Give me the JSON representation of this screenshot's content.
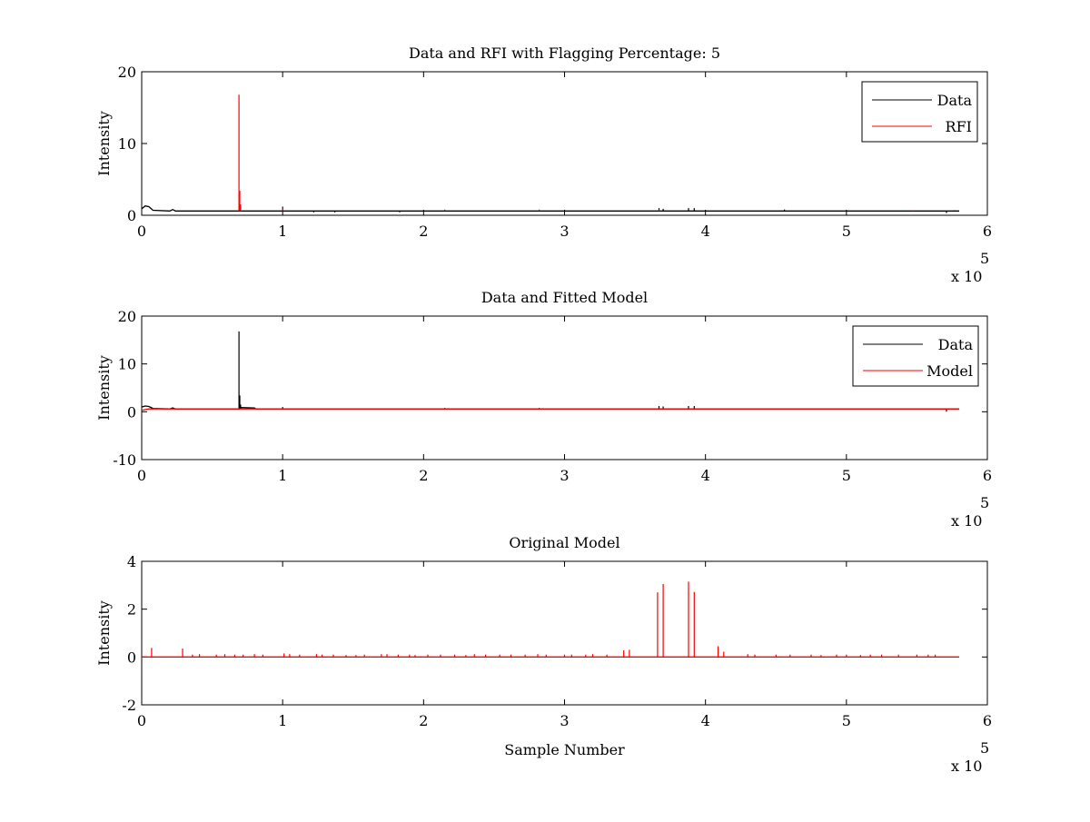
{
  "chart_data": [
    {
      "type": "line",
      "title": "Data and RFI with Flagging Percentage: 5",
      "xlabel": "",
      "ylabel": "Intensity",
      "xlim": [
        0,
        600000
      ],
      "ylim": [
        0,
        20
      ],
      "xticks": [
        0,
        1,
        2,
        3,
        4,
        5,
        6
      ],
      "yticks": [
        0,
        10,
        20
      ],
      "x_exponent": "x 10",
      "x_exponent_power": "5",
      "legend": {
        "position": "top-right",
        "entries": [
          "Data",
          "RFI"
        ]
      },
      "series": [
        {
          "name": "Data",
          "color": "#000000",
          "baseline": 0.6,
          "x_end": 580000,
          "shape": [
            [
              0,
              0.9
            ],
            [
              2500,
              1.3
            ],
            [
              5000,
              1.2
            ],
            [
              8000,
              0.7
            ],
            [
              20000,
              0.6
            ],
            [
              22000,
              0.8
            ],
            [
              24000,
              0.6
            ]
          ],
          "spikes": [
            [
              69000,
              1.5
            ],
            [
              100000,
              1.2
            ],
            [
              122000,
              0.4
            ],
            [
              137000,
              0.4
            ],
            [
              183000,
              0.4
            ],
            [
              367000,
              1.0
            ],
            [
              370000,
              0.9
            ],
            [
              388000,
              1.0
            ],
            [
              392000,
              1.0
            ],
            [
              456000,
              0.8
            ],
            [
              571000,
              0.3
            ],
            [
              577000,
              0.7
            ]
          ]
        },
        {
          "name": "RFI",
          "color": "#ff0000",
          "baseline": null,
          "x_end": 580000,
          "shape": [],
          "spikes": [
            [
              69000,
              16.8
            ],
            [
              69600,
              3.4
            ],
            [
              70200,
              1.5
            ],
            [
              100000,
              1.0
            ],
            [
              215000,
              0.8
            ],
            [
              282000,
              0.8
            ],
            [
              367000,
              0.8
            ],
            [
              396000,
              0.6
            ],
            [
              547000,
              0.7
            ]
          ]
        }
      ]
    },
    {
      "type": "line",
      "title": "Data and Fitted Model",
      "xlabel": "",
      "ylabel": "Intensity",
      "xlim": [
        0,
        600000
      ],
      "ylim": [
        -10,
        20
      ],
      "xticks": [
        0,
        1,
        2,
        3,
        4,
        5,
        6
      ],
      "yticks": [
        -10,
        0,
        10,
        20
      ],
      "x_exponent": "x 10",
      "x_exponent_power": "5",
      "legend": {
        "position": "top-right",
        "entries": [
          "Data",
          "Model"
        ]
      },
      "series": [
        {
          "name": "Data",
          "color": "#000000",
          "baseline": 0.6,
          "x_end": 580000,
          "shape": [
            [
              0,
              1.0
            ],
            [
              2500,
              1.2
            ],
            [
              5000,
              1.1
            ],
            [
              8000,
              0.7
            ],
            [
              20000,
              0.6
            ],
            [
              22000,
              0.8
            ],
            [
              24000,
              0.6
            ],
            [
              69000,
              0.6
            ],
            [
              70000,
              0.9
            ],
            [
              80000,
              0.8
            ],
            [
              81000,
              0.6
            ]
          ],
          "spikes": [
            [
              69000,
              16.8
            ],
            [
              69600,
              3.4
            ],
            [
              70200,
              1.5
            ],
            [
              100000,
              1.0
            ],
            [
              215000,
              0.8
            ],
            [
              282000,
              0.8
            ],
            [
              367000,
              1.2
            ],
            [
              370000,
              1.1
            ],
            [
              388000,
              1.2
            ],
            [
              392000,
              1.2
            ],
            [
              571000,
              0.0
            ],
            [
              577000,
              0.7
            ]
          ]
        },
        {
          "name": "Model",
          "color": "#ff0000",
          "baseline": 0.6,
          "x_end": 580000,
          "shape": [
            [
              0,
              0.3
            ],
            [
              5000,
              0.6
            ],
            [
              8000,
              0.6
            ]
          ],
          "spikes": []
        }
      ]
    },
    {
      "type": "line",
      "title": "Original Model",
      "xlabel": "Sample Number",
      "ylabel": "Intensity",
      "xlim": [
        0,
        600000
      ],
      "ylim": [
        -2,
        4
      ],
      "xticks": [
        0,
        1,
        2,
        3,
        4,
        5,
        6
      ],
      "yticks": [
        -2,
        0,
        2,
        4
      ],
      "x_exponent": "x 10",
      "x_exponent_power": "5",
      "legend": null,
      "series": [
        {
          "name": "",
          "color": "#ff0000",
          "baseline": 0.0,
          "x_end": 580000,
          "shape": [],
          "spikes": [
            [
              7000,
              0.38
            ],
            [
              29000,
              0.35
            ],
            [
              36000,
              0.1
            ],
            [
              41000,
              0.12
            ],
            [
              53000,
              0.1
            ],
            [
              59000,
              0.12
            ],
            [
              66000,
              0.1
            ],
            [
              72000,
              0.1
            ],
            [
              80000,
              0.12
            ],
            [
              86000,
              0.1
            ],
            [
              101000,
              0.15
            ],
            [
              105000,
              0.12
            ],
            [
              112000,
              0.1
            ],
            [
              124000,
              0.12
            ],
            [
              128000,
              0.1
            ],
            [
              136000,
              0.1
            ],
            [
              145000,
              0.08
            ],
            [
              152000,
              0.08
            ],
            [
              158000,
              0.1
            ],
            [
              170000,
              0.12
            ],
            [
              174000,
              0.12
            ],
            [
              182000,
              0.1
            ],
            [
              190000,
              0.1
            ],
            [
              194000,
              0.08
            ],
            [
              203000,
              0.1
            ],
            [
              212000,
              0.1
            ],
            [
              222000,
              0.1
            ],
            [
              230000,
              0.08
            ],
            [
              236000,
              0.12
            ],
            [
              244000,
              0.1
            ],
            [
              254000,
              0.1
            ],
            [
              262000,
              0.1
            ],
            [
              272000,
              0.1
            ],
            [
              281000,
              0.12
            ],
            [
              287000,
              0.1
            ],
            [
              300000,
              0.1
            ],
            [
              305000,
              0.1
            ],
            [
              315000,
              0.1
            ],
            [
              320000,
              0.12
            ],
            [
              330000,
              0.1
            ],
            [
              342000,
              0.28
            ],
            [
              346000,
              0.3
            ],
            [
              366000,
              2.7
            ],
            [
              370000,
              3.05
            ],
            [
              388000,
              3.15
            ],
            [
              392000,
              2.72
            ],
            [
              409000,
              0.45
            ],
            [
              413000,
              0.22
            ],
            [
              430000,
              0.12
            ],
            [
              435000,
              0.1
            ],
            [
              450000,
              0.1
            ],
            [
              460000,
              0.1
            ],
            [
              475000,
              0.1
            ],
            [
              482000,
              0.08
            ],
            [
              493000,
              0.1
            ],
            [
              500000,
              0.1
            ],
            [
              510000,
              0.08
            ],
            [
              517000,
              0.1
            ],
            [
              525000,
              0.1
            ],
            [
              537000,
              0.1
            ],
            [
              550000,
              0.1
            ],
            [
              558000,
              0.1
            ],
            [
              563000,
              0.1
            ]
          ]
        }
      ]
    }
  ]
}
